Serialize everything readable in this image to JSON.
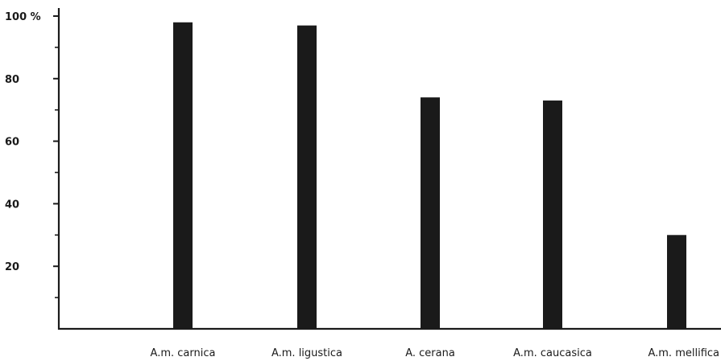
{
  "chart_data": {
    "type": "bar",
    "categories": [
      "A.m. carnica",
      "A.m. ligustica",
      "A. cerana",
      "A.m. caucasica",
      "A.m. mellifica"
    ],
    "values": [
      98,
      97,
      74,
      73,
      30
    ],
    "title": "",
    "xlabel": "",
    "ylabel": "",
    "ylim": [
      0,
      100
    ],
    "y_tick_labels": [
      {
        "value": 100,
        "label": "100 %"
      },
      {
        "value": 80,
        "label": "80"
      },
      {
        "value": 60,
        "label": "60"
      },
      {
        "value": 40,
        "label": "40"
      },
      {
        "value": 20,
        "label": "20"
      }
    ],
    "y_minor_ticks": [
      10,
      30,
      50,
      70,
      90
    ],
    "grid": false,
    "legend": "none",
    "bar_color": "#1a1a1a",
    "axis_color": "#1a1a1a"
  }
}
